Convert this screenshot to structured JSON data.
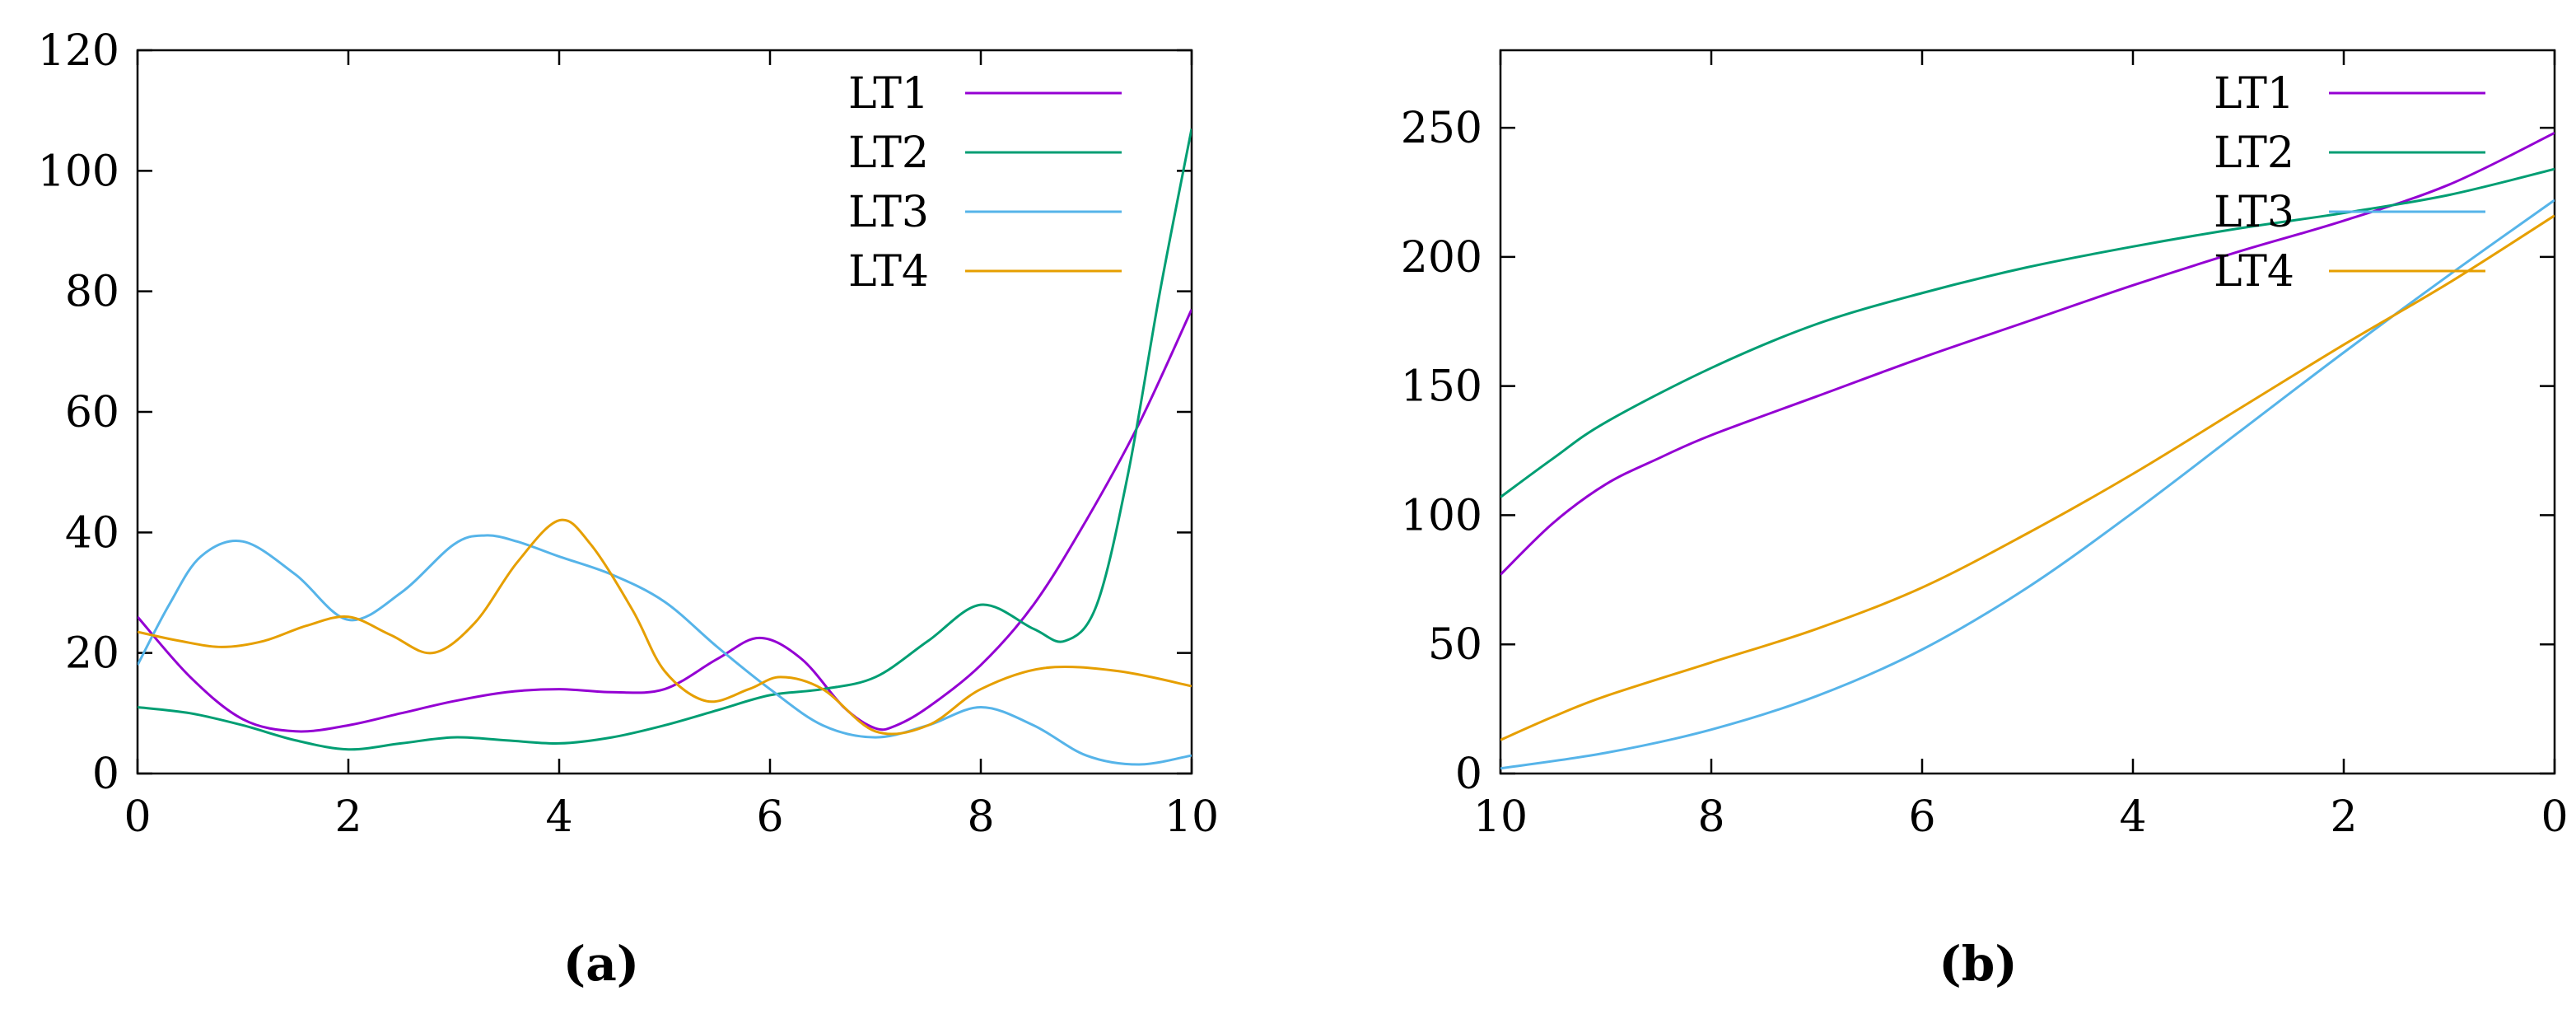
{
  "chart_data": [
    {
      "type": "line",
      "panel_label": "(a)",
      "xlim": [
        0,
        10
      ],
      "ylim": [
        0,
        120
      ],
      "xticks": [
        "0",
        "2",
        "4",
        "6",
        "8",
        "10"
      ],
      "yticks": [
        "0",
        "20",
        "40",
        "60",
        "80",
        "100",
        "120"
      ],
      "legend_position": "top-right",
      "grid": false,
      "series": [
        {
          "name": "LT1",
          "color": "#9400d3",
          "x": [
            0,
            0.5,
            1,
            1.5,
            2,
            2.5,
            3,
            3.5,
            4,
            4.5,
            5,
            5.5,
            5.9,
            6.3,
            6.7,
            7,
            7.2,
            7.5,
            8,
            8.5,
            9,
            9.5,
            10
          ],
          "y": [
            26,
            16,
            9,
            7,
            8,
            10,
            12,
            13.5,
            14,
            13.5,
            14,
            19,
            22.5,
            19,
            11,
            7.5,
            8,
            11,
            18,
            28,
            42,
            58,
            77
          ]
        },
        {
          "name": "LT2",
          "color": "#009e73",
          "x": [
            0,
            0.5,
            1,
            1.5,
            2,
            2.5,
            3,
            3.5,
            4,
            4.5,
            5,
            5.5,
            6,
            6.5,
            7,
            7.5,
            8,
            8.5,
            8.8,
            9.1,
            9.4,
            9.7,
            10
          ],
          "y": [
            11,
            10,
            8,
            5.5,
            4,
            5,
            6,
            5.5,
            5,
            6,
            8,
            10.5,
            13,
            14,
            16,
            22,
            28,
            24,
            22,
            28,
            50,
            80,
            107
          ]
        },
        {
          "name": "LT3",
          "color": "#56b4e9",
          "x": [
            0,
            0.3,
            0.6,
            1,
            1.5,
            2,
            2.5,
            3,
            3.3,
            3.6,
            4,
            4.5,
            5,
            5.5,
            6,
            6.5,
            7,
            7.5,
            8,
            8.5,
            9,
            9.5,
            10
          ],
          "y": [
            18,
            28,
            36,
            38.5,
            33,
            25.5,
            30,
            38,
            39.5,
            38.5,
            36,
            33,
            28.5,
            21,
            14,
            8,
            6,
            8,
            11,
            8,
            3,
            1.5,
            3
          ]
        },
        {
          "name": "LT4",
          "color": "#e69f00",
          "x": [
            0,
            0.4,
            0.8,
            1.2,
            1.6,
            2,
            2.4,
            2.8,
            3.2,
            3.6,
            4,
            4.3,
            4.7,
            5,
            5.4,
            5.8,
            6.1,
            6.5,
            7,
            7.5,
            8,
            8.6,
            9.3,
            10
          ],
          "y": [
            23.5,
            22,
            21,
            22,
            24.5,
            26,
            23,
            20,
            25,
            35,
            42,
            38,
            27,
            17,
            12,
            14,
            16,
            14,
            7,
            8,
            14,
            17.5,
            17,
            14.5
          ]
        }
      ]
    },
    {
      "type": "line",
      "panel_label": "(b)",
      "xlim": [
        10,
        0
      ],
      "ylim": [
        0,
        280
      ],
      "xticks": [
        "10",
        "8",
        "6",
        "4",
        "2",
        "0"
      ],
      "yticks": [
        "0",
        "50",
        "100",
        "150",
        "200",
        "250"
      ],
      "legend_position": "top-right",
      "grid": false,
      "series": [
        {
          "name": "LT1",
          "color": "#9400d3",
          "x": [
            10,
            9.5,
            9,
            8.5,
            8,
            7,
            6,
            5,
            4,
            3,
            2,
            1,
            0
          ],
          "y": [
            77,
            97,
            112,
            122,
            131,
            146,
            161,
            175,
            189,
            202,
            214,
            228,
            248
          ]
        },
        {
          "name": "LT2",
          "color": "#009e73",
          "x": [
            10,
            9.5,
            9,
            8,
            7,
            6,
            5,
            4,
            3,
            2,
            1,
            0
          ],
          "y": [
            107,
            122,
            136,
            157,
            174,
            186,
            196,
            204,
            211,
            217,
            224,
            234
          ]
        },
        {
          "name": "LT3",
          "color": "#56b4e9",
          "x": [
            10,
            9,
            8,
            7,
            6,
            5,
            4,
            3,
            2,
            1,
            0
          ],
          "y": [
            2,
            8,
            17,
            30,
            48,
            72,
            101,
            132,
            163,
            193,
            222
          ]
        },
        {
          "name": "LT4",
          "color": "#e69f00",
          "x": [
            10,
            9.5,
            9,
            8,
            7,
            6,
            5,
            4,
            3,
            2,
            1,
            0
          ],
          "y": [
            13,
            22,
            30,
            43,
            56,
            72,
            93,
            116,
            141,
            166,
            190,
            216
          ]
        }
      ]
    }
  ]
}
